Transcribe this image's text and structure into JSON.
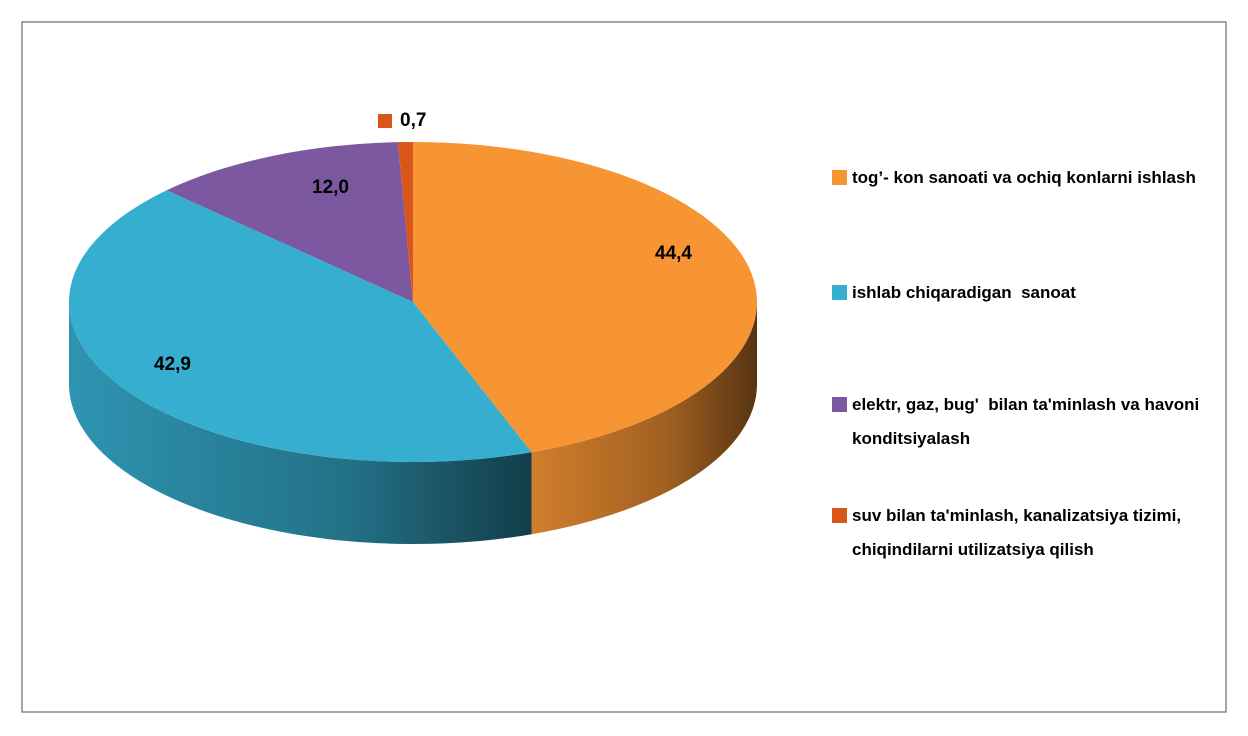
{
  "chart_data": {
    "type": "pie",
    "categories": [
      "tog’- kon sanoati va ochiq konlarni ishlash",
      "ishlab chiqaradigan  sanoat",
      "elektr, gaz, bug'  bilan ta'minlash va havoni konditsiyalash",
      "suv bilan ta'minlash, kanalizatsiya tizimi, chiqindilarni utilizatsiya qilish"
    ],
    "values": [
      44.4,
      42.9,
      12.0,
      0.7
    ],
    "value_labels": [
      "44,4",
      "42,9",
      "12,0",
      "0,7"
    ],
    "colors": [
      "#f79433",
      "#36aed0",
      "#7b58a0",
      "#d9561a"
    ],
    "legend": "right"
  }
}
